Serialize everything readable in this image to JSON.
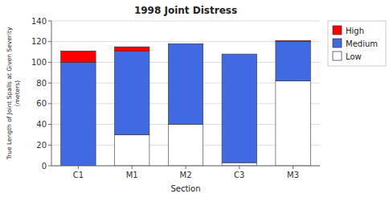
{
  "chart_data": {
    "type": "bar",
    "stacked": true,
    "title": "1998 Joint Distress",
    "x_label": "Section",
    "y_label": "True Length of Joint Spalls at Given Severity\n(meters)",
    "categories": [
      "C1",
      "M1",
      "M2",
      "C3",
      "M3"
    ],
    "series": [
      {
        "name": "Low",
        "color": "#ffffff",
        "values": [
          0,
          30,
          40,
          3,
          82
        ]
      },
      {
        "name": "Medium",
        "color": "#4169e1",
        "values": [
          100,
          81,
          78,
          105,
          38
        ]
      },
      {
        "name": "High",
        "color": "#ff0000",
        "values": [
          11,
          4,
          0,
          0,
          1
        ]
      }
    ],
    "ylim": [
      0,
      140
    ],
    "yticks": [
      0,
      20,
      40,
      60,
      80,
      100,
      120,
      140
    ],
    "grid": true,
    "legend": "right"
  }
}
